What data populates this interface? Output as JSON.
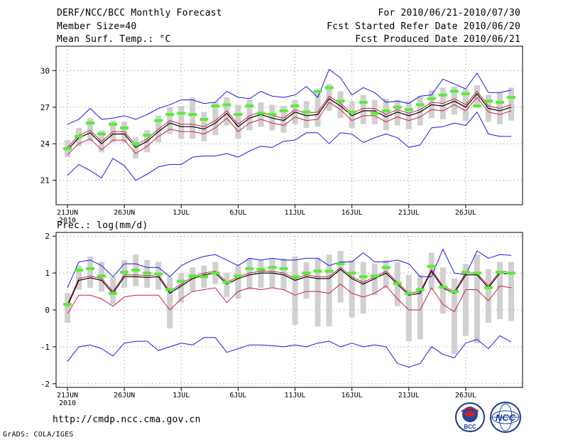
{
  "header": {
    "title": "DERF/NCC/BCC Monthly Forecast",
    "member_size": "Member Size=40",
    "variable": "Mean Surf. Temp.: °C",
    "period": "For 2010/06/21-2010/07/30",
    "started": "Fcst Started Refer Date 2010/06/20",
    "produced": "Fcst Produced Date 2010/06/21"
  },
  "footer": {
    "url": "http://cmdp.ncc.cma.gov.cn",
    "grads": "GrADS: COLA/IGES",
    "logo1_text": "BCC",
    "logo2_text": "NCC"
  },
  "colors": {
    "ensemble_box": "#d0d0d0",
    "ensemble_mean": "#000000",
    "median": "#cc2244",
    "upper": "#1a1ae6",
    "lower": "#1a1ae6",
    "control": "#55ee33",
    "grid": "#888888"
  },
  "chart_data": [
    {
      "type": "line",
      "title": "Mean Surf. Temp.: °C",
      "x_tick_labels": [
        "21JUN",
        "26JUN",
        "1JUL",
        "6JUL",
        "11JUL",
        "16JUL",
        "21JUL",
        "26JUL"
      ],
      "x_year_label": "2010",
      "x_tick_days": [
        1,
        6,
        11,
        16,
        21,
        26,
        31,
        36
      ],
      "days": [
        1,
        2,
        3,
        4,
        5,
        6,
        7,
        8,
        9,
        10,
        11,
        12,
        13,
        14,
        15,
        16,
        17,
        18,
        19,
        20,
        21,
        22,
        23,
        24,
        25,
        26,
        27,
        28,
        29,
        30,
        31,
        32,
        33,
        34,
        35,
        36,
        37,
        38,
        39,
        40
      ],
      "ylim": [
        19,
        32
      ],
      "yticks": [
        21,
        24,
        27,
        30
      ],
      "series": [
        {
          "name": "upper",
          "values": [
            25.6,
            26.0,
            26.9,
            26.0,
            26.1,
            26.3,
            26.0,
            26.4,
            26.9,
            27.2,
            27.6,
            27.6,
            27.3,
            27.4,
            28.3,
            27.8,
            27.7,
            28.3,
            27.9,
            27.8,
            28.0,
            28.7,
            27.8,
            30.1,
            29.4,
            28.0,
            28.6,
            28.2,
            27.4,
            27.5,
            27.3,
            27.9,
            28.0,
            29.3,
            28.9,
            28.5,
            29.8,
            28.2,
            28.2,
            28.4
          ]
        },
        {
          "name": "ensemble_mean",
          "values": [
            23.7,
            24.7,
            25.1,
            24.2,
            25.0,
            25.0,
            23.9,
            24.4,
            25.2,
            25.9,
            25.6,
            25.6,
            25.4,
            25.9,
            26.7,
            25.6,
            26.3,
            26.6,
            26.3,
            26.1,
            26.8,
            26.5,
            26.6,
            27.9,
            27.3,
            26.5,
            26.9,
            26.9,
            26.4,
            26.8,
            26.5,
            26.8,
            27.4,
            27.3,
            27.7,
            27.2,
            28.3,
            27.1,
            26.9,
            27.2
          ]
        },
        {
          "name": "black_mean",
          "values": [
            23.5,
            24.5,
            24.9,
            24.0,
            24.8,
            24.8,
            23.7,
            24.2,
            25.0,
            25.7,
            25.4,
            25.4,
            25.2,
            25.7,
            26.5,
            25.4,
            26.1,
            26.4,
            26.1,
            25.9,
            26.6,
            26.3,
            26.4,
            27.7,
            27.1,
            26.3,
            26.7,
            26.7,
            26.2,
            26.6,
            26.3,
            26.6,
            27.2,
            27.1,
            27.5,
            27.0,
            28.1,
            26.9,
            26.7,
            27.0
          ]
        },
        {
          "name": "median",
          "values": [
            23.1,
            24.0,
            24.4,
            23.5,
            24.3,
            24.3,
            23.2,
            23.8,
            24.6,
            25.2,
            25.0,
            25.0,
            24.8,
            25.3,
            26.1,
            25.0,
            25.7,
            26.0,
            25.7,
            25.5,
            26.2,
            25.9,
            26.0,
            27.4,
            26.8,
            25.9,
            26.3,
            26.3,
            25.8,
            26.2,
            25.9,
            26.2,
            26.8,
            26.7,
            27.2,
            26.7,
            27.8,
            26.6,
            26.4,
            26.7
          ]
        },
        {
          "name": "lower",
          "values": [
            21.4,
            22.3,
            21.8,
            21.2,
            22.8,
            22.2,
            21.0,
            21.5,
            22.1,
            22.3,
            22.3,
            22.9,
            23.0,
            23.0,
            23.2,
            22.9,
            23.4,
            23.8,
            23.7,
            24.2,
            24.3,
            24.9,
            24.9,
            24.0,
            24.9,
            24.8,
            24.1,
            24.5,
            24.8,
            24.5,
            23.7,
            23.9,
            25.3,
            25.4,
            25.7,
            25.5,
            26.6,
            24.8,
            24.6,
            24.6
          ]
        },
        {
          "name": "control",
          "values": [
            23.6,
            24.6,
            25.7,
            24.8,
            25.6,
            25.3,
            24.0,
            24.7,
            25.9,
            26.4,
            26.5,
            26.4,
            26.0,
            27.1,
            27.2,
            26.4,
            27.1,
            26.5,
            26.4,
            26.7,
            27.1,
            26.6,
            28.3,
            28.6,
            27.5,
            26.6,
            27.4,
            26.5,
            26.7,
            27.0,
            26.8,
            27.2,
            27.7,
            28.0,
            28.3,
            28.1,
            27.1,
            27.5,
            27.4,
            27.8
          ]
        },
        {
          "name": "box_low",
          "values": [
            22.9,
            23.8,
            24.2,
            23.3,
            24.1,
            24.1,
            22.8,
            23.3,
            24.1,
            24.8,
            24.4,
            24.4,
            24.2,
            24.7,
            25.5,
            24.4,
            25.1,
            25.4,
            25.1,
            24.9,
            25.6,
            25.3,
            25.4,
            26.7,
            26.1,
            25.3,
            25.6,
            25.6,
            25.1,
            25.5,
            25.2,
            25.5,
            26.1,
            26.0,
            26.4,
            25.9,
            27.0,
            25.8,
            25.6,
            25.9
          ]
        },
        {
          "name": "box_high",
          "values": [
            24.3,
            25.3,
            26.1,
            25.1,
            25.9,
            25.8,
            24.5,
            25.1,
            26.3,
            27.0,
            27.1,
            27.8,
            26.6,
            27.4,
            27.8,
            27.2,
            27.6,
            27.4,
            27.2,
            27.1,
            27.6,
            27.5,
            28.3,
            28.9,
            28.3,
            27.5,
            28.0,
            27.6,
            27.7,
            27.6,
            27.5,
            27.9,
            28.4,
            28.6,
            28.7,
            28.5,
            28.8,
            28.0,
            28.2,
            28.6
          ]
        }
      ]
    },
    {
      "type": "line",
      "title": "Prec.: log(mm/d)",
      "x_tick_labels": [
        "21JUN",
        "26JUN",
        "1JUL",
        "6JUL",
        "11JUL",
        "16JUL",
        "21JUL",
        "26JUL"
      ],
      "x_year_label": "2010",
      "x_tick_days": [
        1,
        6,
        11,
        16,
        21,
        26,
        31,
        36
      ],
      "days": [
        1,
        2,
        3,
        4,
        5,
        6,
        7,
        8,
        9,
        10,
        11,
        12,
        13,
        14,
        15,
        16,
        17,
        18,
        19,
        20,
        21,
        22,
        23,
        24,
        25,
        26,
        27,
        28,
        29,
        30,
        31,
        32,
        33,
        34,
        35,
        36,
        37,
        38,
        39,
        40
      ],
      "ylim": [
        -2.1,
        2.1
      ],
      "yticks": [
        -2,
        -1,
        0,
        1,
        2
      ],
      "series": [
        {
          "name": "upper",
          "values": [
            0.6,
            1.3,
            1.35,
            1.2,
            0.9,
            1.25,
            1.25,
            1.15,
            1.15,
            0.9,
            1.2,
            1.35,
            1.45,
            1.5,
            1.35,
            1.2,
            1.4,
            1.35,
            1.4,
            1.35,
            1.35,
            1.4,
            1.4,
            1.2,
            1.3,
            1.3,
            1.55,
            1.3,
            1.3,
            1.35,
            1.25,
            0.9,
            0.9,
            1.65,
            1.0,
            0.95,
            1.6,
            1.4,
            1.5,
            1.48
          ]
        },
        {
          "name": "ensemble_mean",
          "values": [
            0.15,
            0.85,
            0.92,
            0.85,
            0.5,
            0.95,
            0.95,
            0.93,
            0.95,
            0.5,
            0.7,
            0.9,
            1.0,
            1.05,
            0.75,
            0.9,
            1.0,
            1.05,
            1.05,
            1.0,
            0.85,
            0.95,
            0.9,
            0.9,
            1.15,
            0.9,
            0.75,
            0.9,
            1.05,
            0.75,
            0.45,
            0.5,
            1.1,
            0.65,
            0.5,
            1.0,
            1.0,
            0.65,
            1.05,
            1.02
          ]
        },
        {
          "name": "black_mean",
          "values": [
            0.1,
            0.8,
            0.87,
            0.8,
            0.45,
            0.9,
            0.9,
            0.88,
            0.9,
            0.45,
            0.65,
            0.85,
            0.95,
            1.0,
            0.7,
            0.85,
            0.95,
            1.0,
            1.0,
            0.95,
            0.8,
            0.9,
            0.85,
            0.85,
            1.1,
            0.85,
            0.7,
            0.85,
            1.0,
            0.7,
            0.4,
            0.45,
            1.05,
            0.6,
            0.45,
            0.95,
            0.95,
            0.6,
            1.0,
            0.97
          ]
        },
        {
          "name": "median",
          "values": [
            -0.1,
            0.4,
            0.4,
            0.3,
            0.1,
            0.35,
            0.4,
            0.4,
            0.4,
            0.0,
            0.3,
            0.5,
            0.55,
            0.6,
            0.2,
            0.5,
            0.6,
            0.55,
            0.6,
            0.55,
            0.4,
            0.5,
            0.5,
            0.45,
            0.7,
            0.45,
            0.35,
            0.45,
            0.65,
            0.3,
            0.0,
            0.0,
            0.6,
            0.15,
            -0.05,
            0.55,
            0.55,
            0.25,
            0.65,
            0.6
          ]
        },
        {
          "name": "lower",
          "values": [
            -1.4,
            -1.0,
            -0.95,
            -1.05,
            -1.25,
            -0.9,
            -0.85,
            -0.85,
            -1.1,
            -1.0,
            -0.9,
            -0.95,
            -0.75,
            -0.75,
            -1.15,
            -1.05,
            -0.95,
            -0.95,
            -0.97,
            -1.0,
            -0.95,
            -1.0,
            -0.9,
            -0.85,
            -1.0,
            -0.9,
            -1.0,
            -0.95,
            -1.0,
            -1.45,
            -1.55,
            -1.45,
            -1.0,
            -1.2,
            -1.3,
            -0.9,
            -0.8,
            -1.05,
            -0.7,
            -0.87
          ]
        },
        {
          "name": "control",
          "values": [
            0.15,
            1.08,
            1.12,
            0.92,
            0.45,
            1.02,
            1.08,
            1.0,
            0.97,
            0.55,
            0.78,
            0.92,
            0.9,
            1.0,
            0.75,
            0.92,
            1.12,
            1.1,
            1.15,
            1.12,
            0.9,
            1.0,
            1.05,
            1.05,
            1.25,
            1.0,
            0.9,
            0.92,
            1.15,
            0.72,
            0.45,
            0.55,
            1.18,
            0.62,
            0.5,
            1.02,
            1.0,
            0.6,
            1.02,
            1.0
          ]
        },
        {
          "name": "box_low",
          "values": [
            -0.35,
            0.55,
            0.6,
            0.5,
            0.15,
            0.6,
            0.65,
            0.6,
            0.55,
            -0.5,
            0.2,
            0.5,
            0.6,
            0.7,
            0.35,
            0.3,
            0.55,
            0.6,
            0.6,
            0.55,
            -0.4,
            0.3,
            -0.45,
            -0.45,
            0.2,
            -0.2,
            -0.1,
            0.4,
            0.6,
            0.1,
            -0.85,
            -0.8,
            0.55,
            -0.1,
            -1.2,
            -0.7,
            -0.9,
            -0.35,
            -0.25,
            -0.3
          ]
        },
        {
          "name": "box_high",
          "values": [
            0.45,
            1.2,
            1.45,
            1.3,
            0.9,
            1.35,
            1.5,
            1.35,
            1.3,
            0.9,
            1.0,
            1.15,
            1.2,
            1.3,
            1.0,
            1.2,
            1.4,
            1.35,
            1.4,
            1.4,
            1.45,
            1.3,
            1.4,
            1.5,
            1.6,
            1.35,
            1.3,
            1.25,
            1.35,
            1.3,
            0.95,
            0.95,
            1.55,
            1.15,
            0.85,
            1.25,
            1.5,
            1.1,
            1.3,
            1.3
          ]
        }
      ]
    }
  ]
}
